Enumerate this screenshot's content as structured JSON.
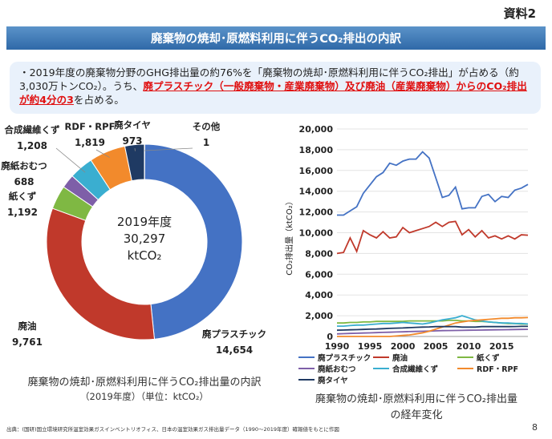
{
  "doc_tag": "資料2",
  "banner_title": "廃棄物の焼却･原燃料利用に伴うCO₂排出の内訳",
  "summary": {
    "part1": "・2019年度の廃棄物分野のGHG排出量の約76%を「廃棄物の焼却･原燃料利用に伴うCO₂排出」が占める（約3,030万トンCO₂）。うち、",
    "highlight": "廃プラスチック（一般廃棄物・産業廃棄物）及び廃油（産業廃棄物）からのCO₂排出が約4分の3",
    "part2": "を占める。"
  },
  "donut_caption": {
    "line1": "廃棄物の焼却･原燃料利用に伴うCO₂排出量の内訳",
    "line2": "（2019年度）（単位：ktCO₂）"
  },
  "line_caption": {
    "line1": "廃棄物の焼却･原燃料利用に伴うCO₂排出量",
    "line2": "の経年変化"
  },
  "footer": "出典：(国研)国立環境研究所温室効果ガスインベントリオフィス、日本の温室効果ガス排出量データ（1990～2019年度）確報値をもとに作図",
  "page_number": "8",
  "colors": {
    "plastic": "#4472c4",
    "oil": "#c0392b",
    "paper": "#7fb843",
    "diaper": "#7e5fa8",
    "fiber": "#3aaed0",
    "rdf": "#f28a2c",
    "tire": "#1f3a63",
    "other": "#5b8fd0"
  },
  "chart_data": [
    {
      "type": "pie",
      "subtype": "donut",
      "center_label": [
        "2019年度",
        "30,297",
        "ktCO₂"
      ],
      "slices": [
        {
          "name": "廃プラスチック",
          "value": 14654,
          "value_label": "14,654",
          "color_key": "plastic"
        },
        {
          "name": "廃油",
          "value": 9761,
          "value_label": "9,761",
          "color_key": "oil"
        },
        {
          "name": "紙くず",
          "value": 1192,
          "value_label": "1,192",
          "color_key": "paper"
        },
        {
          "name": "廃紙おむつ",
          "value": 688,
          "value_label": "688",
          "color_key": "diaper"
        },
        {
          "name": "合成繊維くず",
          "value": 1208,
          "value_label": "1,208",
          "color_key": "fiber"
        },
        {
          "name": "RDF・RPF",
          "value": 1819,
          "value_label": "1,819",
          "color_key": "rdf"
        },
        {
          "name": "廃タイヤ",
          "value": 973,
          "value_label": "973",
          "color_key": "tire"
        },
        {
          "name": "その他",
          "value": 1,
          "value_label": "1",
          "color_key": "other"
        }
      ]
    },
    {
      "type": "line",
      "x": [
        1990,
        1991,
        1992,
        1993,
        1994,
        1995,
        1996,
        1997,
        1998,
        1999,
        2000,
        2001,
        2002,
        2003,
        2004,
        2005,
        2006,
        2007,
        2008,
        2009,
        2010,
        2011,
        2012,
        2013,
        2014,
        2015,
        2016,
        2017,
        2018,
        2019
      ],
      "xticks": [
        1990,
        1995,
        2000,
        2005,
        2010,
        2015
      ],
      "xlim": [
        1990,
        2019
      ],
      "ylim": [
        0,
        20000
      ],
      "yticks": [
        0,
        2000,
        4000,
        6000,
        8000,
        10000,
        12000,
        14000,
        16000,
        18000,
        20000
      ],
      "ytick_labels": [
        "0",
        "2,000",
        "4,000",
        "6,000",
        "8,000",
        "10,000",
        "12,000",
        "14,000",
        "16,000",
        "18,000",
        "20,000"
      ],
      "ylabel": "CO₂排出量（ktCO₂）",
      "legend_position": "bottom",
      "series": [
        {
          "name": "廃プラスチック",
          "color_key": "plastic",
          "values": [
            11700,
            11700,
            12100,
            12500,
            13800,
            14600,
            15400,
            15800,
            16700,
            16500,
            16900,
            17100,
            17100,
            17800,
            17200,
            15300,
            13400,
            13600,
            14400,
            12300,
            12400,
            12400,
            13500,
            13700,
            13000,
            13500,
            13400,
            14100,
            14300,
            14654
          ]
        },
        {
          "name": "廃油",
          "color_key": "oil",
          "values": [
            8000,
            8100,
            9500,
            8200,
            10200,
            9800,
            9500,
            10100,
            9500,
            9600,
            10500,
            10000,
            10200,
            10400,
            10600,
            11000,
            10600,
            11000,
            11100,
            9800,
            10300,
            9600,
            10200,
            9500,
            9700,
            9400,
            9700,
            9400,
            9800,
            9761
          ]
        },
        {
          "name": "紙くず",
          "color_key": "paper",
          "values": [
            1300,
            1300,
            1350,
            1350,
            1400,
            1400,
            1450,
            1450,
            1450,
            1450,
            1450,
            1500,
            1500,
            1500,
            1500,
            1500,
            1500,
            1550,
            1550,
            1500,
            1500,
            1450,
            1450,
            1400,
            1350,
            1300,
            1250,
            1250,
            1200,
            1192
          ]
        },
        {
          "name": "廃紙おむつ",
          "color_key": "diaper",
          "values": [
            250,
            270,
            290,
            310,
            330,
            350,
            370,
            390,
            410,
            430,
            450,
            470,
            490,
            500,
            520,
            540,
            560,
            570,
            580,
            590,
            600,
            610,
            620,
            630,
            640,
            650,
            660,
            670,
            680,
            688
          ]
        },
        {
          "name": "合成繊維くず",
          "color_key": "fiber",
          "values": [
            1000,
            1000,
            1050,
            1100,
            1100,
            1150,
            1200,
            1250,
            1250,
            1300,
            1350,
            1300,
            1250,
            1200,
            1300,
            1450,
            1600,
            1700,
            1800,
            2000,
            1800,
            1600,
            1500,
            1400,
            1350,
            1300,
            1300,
            1250,
            1250,
            1208
          ]
        },
        {
          "name": "RDF・RPF",
          "color_key": "rdf",
          "values": [
            0,
            0,
            0,
            0,
            0,
            0,
            0,
            0,
            0,
            50,
            100,
            150,
            250,
            350,
            500,
            700,
            900,
            1100,
            1300,
            1400,
            1500,
            1550,
            1600,
            1650,
            1700,
            1750,
            1750,
            1800,
            1800,
            1819
          ]
        },
        {
          "name": "廃タイヤ",
          "color_key": "tire",
          "values": [
            600,
            620,
            640,
            660,
            680,
            700,
            720,
            750,
            780,
            800,
            820,
            850,
            880,
            900,
            920,
            950,
            950,
            950,
            950,
            900,
            900,
            900,
            950,
            950,
            950,
            950,
            950,
            960,
            970,
            973
          ]
        }
      ]
    }
  ]
}
